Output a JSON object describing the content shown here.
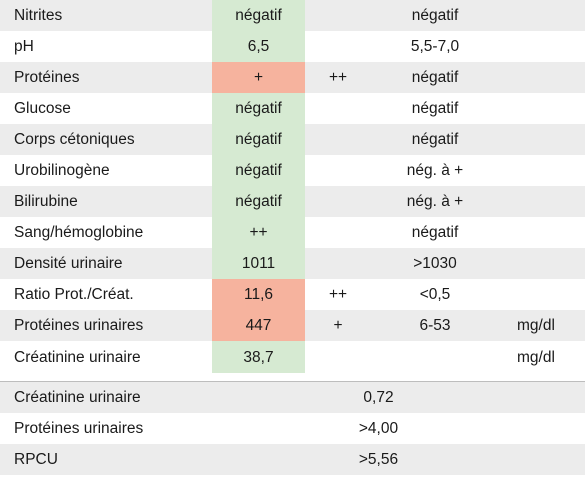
{
  "urine_rows": [
    {
      "label": "Nitrites",
      "value": "négatif",
      "flag": "",
      "ref": "négatif",
      "unit": "",
      "abnormal": false
    },
    {
      "label": "pH",
      "value": "6,5",
      "flag": "",
      "ref": "5,5-7,0",
      "unit": "",
      "abnormal": false
    },
    {
      "label": "Protéines",
      "value": "+",
      "flag": "++",
      "ref": "négatif",
      "unit": "",
      "abnormal": true
    },
    {
      "label": "Glucose",
      "value": "négatif",
      "flag": "",
      "ref": "négatif",
      "unit": "",
      "abnormal": false
    },
    {
      "label": "Corps cétoniques",
      "value": "négatif",
      "flag": "",
      "ref": "négatif",
      "unit": "",
      "abnormal": false
    },
    {
      "label": "Urobilinogène",
      "value": "négatif",
      "flag": "",
      "ref": "nég. à +",
      "unit": "",
      "abnormal": false
    },
    {
      "label": "Bilirubine",
      "value": "négatif",
      "flag": "",
      "ref": "nég. à +",
      "unit": "",
      "abnormal": false
    },
    {
      "label": "Sang/hémoglobine",
      "value": "++",
      "flag": "",
      "ref": "négatif",
      "unit": "",
      "abnormal": false
    },
    {
      "label": "Densité urinaire",
      "value": "1011",
      "flag": "",
      "ref": ">1030",
      "unit": "",
      "abnormal": false
    },
    {
      "label": "Ratio Prot./Créat.",
      "value": "11,6",
      "flag": "++",
      "ref": "<0,5",
      "unit": "",
      "abnormal": true
    },
    {
      "label": "Protéines urinaires",
      "value": "447",
      "flag": "+",
      "ref": "6-53",
      "unit": "mg/dl",
      "abnormal": true
    },
    {
      "label": "Créatinine urinaire",
      "value": "38,7",
      "flag": "",
      "ref": "",
      "unit": "mg/dl",
      "abnormal": false
    }
  ],
  "secondary_rows": [
    {
      "label": "Créatinine urinaire",
      "value": "0,72"
    },
    {
      "label": "Protéines urinaires",
      "value": ">4,00"
    },
    {
      "label": "RPCU",
      "value": ">5,56"
    }
  ],
  "colors": {
    "normal_value_bg": "#d6ead2",
    "abnormal_value_bg": "#f6b39e",
    "stripe_bg": "#ececec"
  }
}
